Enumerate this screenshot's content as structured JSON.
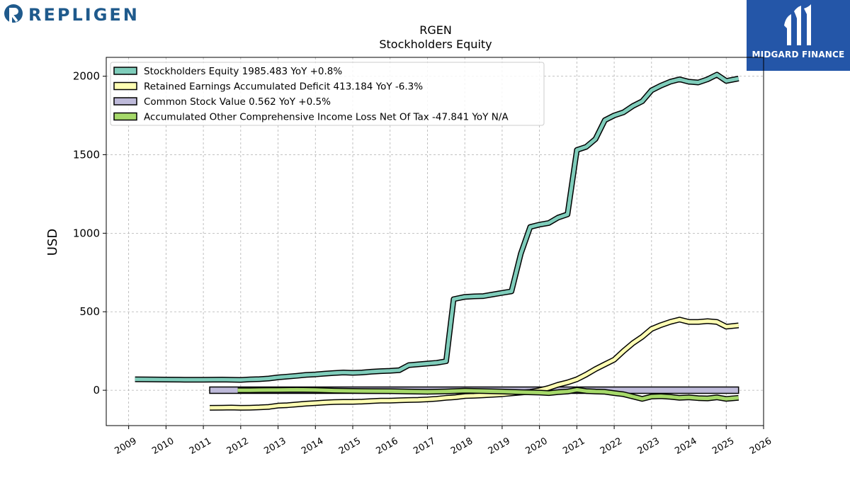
{
  "branding": {
    "company_logo_text": "REPLIGEN",
    "company_logo_color": "#1f5a8c",
    "company_logo_icon": "repligen-r-icon",
    "publisher_logo_text": "MIDGARD FINANCE",
    "publisher_logo_bg": "#2456a8",
    "publisher_logo_icon": "midgard-m-icon"
  },
  "chart_data": {
    "type": "line",
    "title": "RGEN",
    "subtitle": "Stockholders  Equity",
    "ylabel": "USD",
    "xlabel": "",
    "xlim": [
      2008.4,
      2026.0
    ],
    "ylim": [
      -225,
      2120
    ],
    "yticks": [
      0,
      500,
      1000,
      1500,
      2000
    ],
    "xticks": [
      "2009",
      "2010",
      "2011",
      "2012",
      "2013",
      "2014",
      "2015",
      "2016",
      "2017",
      "2018",
      "2019",
      "2020",
      "2021",
      "2022",
      "2023",
      "2024",
      "2025",
      "2026"
    ],
    "grid": true,
    "legend_position": "top-left",
    "series": [
      {
        "name": "Stockholders Equity",
        "legend": "Stockholders Equity  1985.483 YoY +0.8%",
        "color": "#7fcdbb",
        "x": [
          2009.17,
          2009.5,
          2010.0,
          2010.5,
          2011.0,
          2011.5,
          2011.75,
          2012.0,
          2012.25,
          2012.5,
          2012.75,
          2013.0,
          2013.25,
          2013.5,
          2013.75,
          2014.0,
          2014.25,
          2014.5,
          2014.75,
          2015.0,
          2015.25,
          2015.5,
          2015.75,
          2016.0,
          2016.25,
          2016.5,
          2016.75,
          2017.0,
          2017.25,
          2017.5,
          2017.7,
          2018.0,
          2018.25,
          2018.5,
          2018.75,
          2019.0,
          2019.25,
          2019.5,
          2019.75,
          2020.0,
          2020.25,
          2020.5,
          2020.75,
          2021.0,
          2021.25,
          2021.5,
          2021.75,
          2022.0,
          2022.25,
          2022.5,
          2022.75,
          2023.0,
          2023.25,
          2023.5,
          2023.75,
          2024.0,
          2024.25,
          2024.5,
          2024.75,
          2025.0,
          2025.33
        ],
        "values": [
          70,
          69,
          68,
          67,
          67,
          68,
          67,
          66,
          69,
          71,
          75,
          82,
          87,
          92,
          98,
          101,
          106,
          110,
          113,
          111,
          113,
          118,
          122,
          124,
          128,
          160,
          165,
          170,
          175,
          185,
          580,
          595,
          598,
          600,
          610,
          620,
          630,
          870,
          1040,
          1055,
          1065,
          1100,
          1120,
          1530,
          1550,
          1600,
          1720,
          1750,
          1770,
          1810,
          1840,
          1910,
          1940,
          1965,
          1980,
          1965,
          1960,
          1980,
          2010,
          1970,
          1985
        ]
      },
      {
        "name": "Retained Earnings Accumulated Deficit",
        "legend": "Retained Earnings Accumulated Deficit  413.184 YoY -6.3%",
        "color": "#ffffb3",
        "x": [
          2011.17,
          2011.5,
          2011.75,
          2012.0,
          2012.25,
          2012.5,
          2012.75,
          2013.0,
          2013.25,
          2013.5,
          2013.75,
          2014.0,
          2014.25,
          2014.5,
          2014.75,
          2015.0,
          2015.25,
          2015.5,
          2015.75,
          2016.0,
          2016.25,
          2016.5,
          2016.75,
          2017.0,
          2017.25,
          2017.5,
          2017.75,
          2018.0,
          2018.25,
          2018.5,
          2018.75,
          2019.0,
          2019.25,
          2019.5,
          2019.75,
          2020.0,
          2020.25,
          2020.5,
          2020.75,
          2021.0,
          2021.25,
          2021.5,
          2021.75,
          2022.0,
          2022.25,
          2022.5,
          2022.75,
          2023.0,
          2023.25,
          2023.5,
          2023.75,
          2024.0,
          2024.25,
          2024.5,
          2024.75,
          2025.0,
          2025.33
        ],
        "values": [
          -112,
          -111,
          -110,
          -112,
          -111,
          -109,
          -106,
          -98,
          -95,
          -90,
          -85,
          -82,
          -78,
          -75,
          -74,
          -74,
          -72,
          -69,
          -66,
          -66,
          -64,
          -62,
          -61,
          -58,
          -54,
          -48,
          -44,
          -37,
          -35,
          -32,
          -29,
          -25,
          -20,
          -15,
          -10,
          0,
          15,
          35,
          50,
          70,
          100,
          135,
          165,
          195,
          250,
          300,
          340,
          390,
          415,
          435,
          450,
          435,
          435,
          440,
          435,
          405,
          413
        ]
      },
      {
        "name": "Common Stock Value",
        "legend": "Common Stock Value  0.562 YoY +0.5%",
        "color": "#bebada",
        "x": [
          2011.17,
          2025.33
        ],
        "values": [
          0.562,
          0.562
        ]
      },
      {
        "name": "Accumulated Other Comprehensive Income Loss Net Of Tax",
        "legend": "Accumulated Other Comprehensive Income Loss Net Of Tax  -47.841 YoY N/A",
        "color": "#a6d96a",
        "x": [
          2011.92,
          2012.25,
          2012.5,
          2013.0,
          2013.5,
          2014.0,
          2014.5,
          2015.0,
          2015.5,
          2016.0,
          2016.5,
          2017.0,
          2017.5,
          2018.0,
          2018.5,
          2019.0,
          2019.5,
          2020.0,
          2020.25,
          2020.5,
          2020.75,
          2021.0,
          2021.25,
          2021.5,
          2021.75,
          2022.0,
          2022.25,
          2022.5,
          2022.75,
          2023.0,
          2023.25,
          2023.5,
          2023.75,
          2024.0,
          2024.25,
          2024.5,
          2024.75,
          2025.0,
          2025.33
        ],
        "values": [
          0,
          0,
          1,
          2,
          3,
          2,
          -2,
          -4,
          -5,
          -6,
          -8,
          -10,
          -7,
          -3,
          -5,
          -8,
          -12,
          -15,
          -18,
          -12,
          -8,
          3,
          -5,
          -8,
          -10,
          -18,
          -25,
          -40,
          -55,
          -40,
          -38,
          -42,
          -48,
          -45,
          -50,
          -52,
          -45,
          -55,
          -48
        ]
      }
    ]
  }
}
